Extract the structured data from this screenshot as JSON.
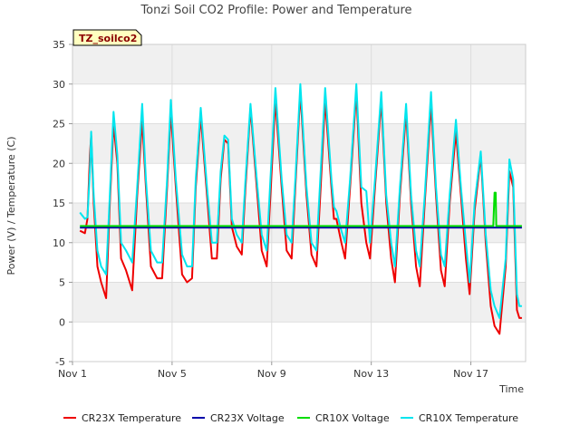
{
  "chart_data": {
    "type": "line",
    "title": "Tonzi Soil CO2 Profile: Power and Temperature",
    "badge": "TZ_soilco2",
    "xlabel": "Time",
    "ylabel": "Power (V) / Temperature (C)",
    "xlim": [
      0,
      18.2
    ],
    "ylim": [
      -5,
      35
    ],
    "xticks": [
      {
        "value": 0,
        "label": "Nov 1"
      },
      {
        "value": 4,
        "label": "Nov 5"
      },
      {
        "value": 8,
        "label": "Nov 9"
      },
      {
        "value": 12,
        "label": "Nov 13"
      },
      {
        "value": 16,
        "label": "Nov 17"
      }
    ],
    "yticks": [
      -5,
      0,
      5,
      10,
      15,
      20,
      25,
      30,
      35
    ],
    "grid": true,
    "legend_position": "bottom",
    "series": [
      {
        "name": "CR23X Temperature",
        "color": "#ee0000",
        "x": [
          0.3,
          0.5,
          0.6,
          0.7,
          0.75,
          0.85,
          1.0,
          1.15,
          1.35,
          1.5,
          1.65,
          1.8,
          1.95,
          2.15,
          2.4,
          2.6,
          2.8,
          2.95,
          3.15,
          3.4,
          3.6,
          3.8,
          3.95,
          4.15,
          4.4,
          4.6,
          4.8,
          4.95,
          5.15,
          5.4,
          5.6,
          5.8,
          5.95,
          6.1,
          6.25,
          6.4,
          6.6,
          6.8,
          6.95,
          7.15,
          7.4,
          7.6,
          7.8,
          7.95,
          8.15,
          8.4,
          8.6,
          8.8,
          8.95,
          9.15,
          9.4,
          9.6,
          9.8,
          9.95,
          10.15,
          10.4,
          10.5,
          10.6,
          10.8,
          10.95,
          11.15,
          11.4,
          11.6,
          11.8,
          11.95,
          12.15,
          12.4,
          12.6,
          12.8,
          12.95,
          13.15,
          13.4,
          13.6,
          13.8,
          13.95,
          14.15,
          14.4,
          14.6,
          14.8,
          14.95,
          15.15,
          15.4,
          15.6,
          15.8,
          15.95,
          16.15,
          16.4,
          16.6,
          16.8,
          16.95,
          17.15,
          17.4,
          17.55,
          17.7,
          17.85,
          17.95,
          18.05
        ],
        "y": [
          11.5,
          11.2,
          13,
          21,
          23.5,
          15,
          7,
          5,
          3,
          15,
          25,
          20,
          8,
          6.5,
          4,
          16,
          25.5,
          17,
          7,
          5.5,
          5.5,
          17,
          26.5,
          17,
          6,
          5,
          5.5,
          17,
          26,
          16,
          8,
          8,
          18,
          23,
          22.5,
          12,
          9.5,
          8.5,
          17,
          27,
          17,
          9,
          7,
          16,
          28,
          17,
          9,
          8,
          17,
          29,
          16,
          8.5,
          7,
          16,
          28,
          17,
          13,
          13,
          10,
          8,
          17,
          29,
          15,
          10,
          8,
          17,
          28,
          15,
          8,
          5,
          16,
          26.5,
          15,
          7,
          4.5,
          15,
          27.5,
          16,
          6.5,
          4.5,
          15,
          24,
          16,
          8,
          3.5,
          14,
          21,
          10,
          2,
          -0.5,
          -1.5,
          7,
          19,
          17,
          1.5,
          0.5,
          0.5
        ]
      },
      {
        "name": "CR23X Voltage",
        "color": "#0000aa",
        "x": [
          0.3,
          18.05
        ],
        "y": [
          11.9,
          11.9
        ]
      },
      {
        "name": "CR10X Voltage",
        "color": "#00dd00",
        "x": [
          0.3,
          16.9,
          16.95,
          17.0,
          17.02,
          18.05
        ],
        "y": [
          12.1,
          12.1,
          16.3,
          16.3,
          12.1,
          12.1
        ]
      },
      {
        "name": "CR10X Temperature",
        "color": "#00e5ee",
        "x": [
          0.3,
          0.5,
          0.6,
          0.7,
          0.75,
          0.85,
          1.0,
          1.15,
          1.35,
          1.5,
          1.65,
          1.8,
          1.95,
          2.15,
          2.4,
          2.6,
          2.8,
          2.95,
          3.15,
          3.4,
          3.6,
          3.8,
          3.95,
          4.15,
          4.4,
          4.6,
          4.8,
          4.95,
          5.15,
          5.4,
          5.6,
          5.8,
          5.95,
          6.1,
          6.25,
          6.4,
          6.6,
          6.8,
          6.95,
          7.15,
          7.4,
          7.6,
          7.8,
          7.95,
          8.15,
          8.4,
          8.6,
          8.8,
          8.95,
          9.15,
          9.4,
          9.6,
          9.8,
          9.95,
          10.15,
          10.4,
          10.5,
          10.6,
          10.8,
          10.95,
          11.15,
          11.4,
          11.6,
          11.8,
          11.95,
          12.15,
          12.4,
          12.6,
          12.8,
          12.95,
          13.15,
          13.4,
          13.6,
          13.8,
          13.95,
          14.15,
          14.4,
          14.6,
          14.8,
          14.95,
          15.15,
          15.4,
          15.6,
          15.8,
          15.95,
          16.15,
          16.4,
          16.6,
          16.8,
          16.95,
          17.15,
          17.4,
          17.55,
          17.7,
          17.85,
          17.95,
          18.05
        ],
        "y": [
          13.8,
          13,
          13.2,
          19,
          24,
          16,
          9,
          7,
          6,
          16,
          26.5,
          21,
          10,
          9,
          7.5,
          17,
          27.5,
          18,
          9,
          7.5,
          7.5,
          18,
          28,
          18,
          8.5,
          7,
          7,
          18,
          27,
          17,
          10,
          10,
          19,
          23.5,
          23,
          13,
          11,
          10,
          18,
          27.5,
          18,
          11,
          9,
          18,
          29.5,
          18,
          11,
          10,
          18,
          30,
          17,
          10,
          9,
          18,
          29.5,
          18,
          14.5,
          14,
          11.5,
          10,
          18,
          30,
          17,
          16.5,
          10,
          18,
          29,
          16,
          10,
          7,
          17,
          27.5,
          16,
          9,
          7,
          16,
          29,
          17,
          8.5,
          7,
          16,
          25.5,
          17,
          10,
          5,
          15,
          21.5,
          11,
          4,
          2,
          0.5,
          8,
          20.5,
          18,
          3.5,
          2,
          2
        ]
      }
    ]
  }
}
